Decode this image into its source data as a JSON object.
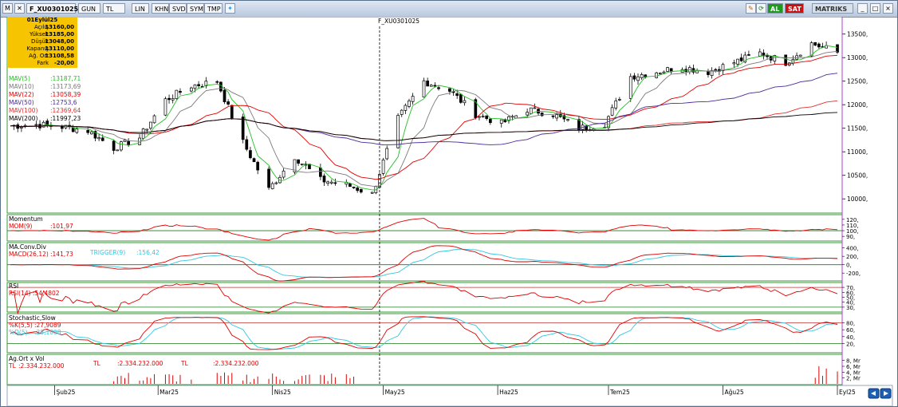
{
  "window": {
    "title": "F_XU0301025",
    "tabs": [
      "GUN",
      "TL",
      "LIN",
      "KHN",
      "SVD",
      "SYM",
      "TMP"
    ],
    "buttons": {
      "al": "AL",
      "sat": "SAT",
      "brand": "MATRIKS"
    },
    "symbol_label": "F_XU0301025"
  },
  "ohlc_box": {
    "date": "01Eylül25",
    "rows": [
      {
        "label": "Açılış",
        "value": "13160,00"
      },
      {
        "label": "Yüksek",
        "value": "13185,00"
      },
      {
        "label": "Düşük",
        "value": "13048,00"
      },
      {
        "label": "Kapanış",
        "value": "13110,00"
      },
      {
        "label": "Ağ. Ort",
        "value": "13108,58"
      },
      {
        "label": "Fark",
        "value": "-20,00"
      }
    ]
  },
  "ma_legend": [
    {
      "label": "MAV(5)",
      "value": ":13187,71",
      "color": "#22c022"
    },
    {
      "label": "MAV(10)",
      "value": ":13173,69",
      "color": "#7a7a7a"
    },
    {
      "label": "MAV(22)",
      "value": ":13058,39",
      "color": "#e00000"
    },
    {
      "label": "MAV(50)",
      "value": ":12753,6",
      "color": "#4a2a9a"
    },
    {
      "label": "MAV(100)",
      "value": ":12369,64",
      "color": "#e03030"
    },
    {
      "label": "MAV(200)",
      "value": ":11997,23",
      "color": "#000000"
    }
  ],
  "panels": {
    "momentum": {
      "title": "Momentum",
      "label": "MOM(9)",
      "value": ":101,97",
      "ticks": [
        "120,",
        "110,",
        "100,",
        "90,"
      ]
    },
    "macd": {
      "title": "MA.Conv.Div",
      "label": "MACD(26,12)",
      "value": ":141,73",
      "trigger_label": "TRIGGER(9)",
      "trigger_value": ":156,42",
      "ticks": [
        "400,",
        "200,",
        "0,",
        "-200,"
      ]
    },
    "rsi": {
      "title": "RSI",
      "label": "RSI(14)",
      "value": ":54,4802",
      "ticks": [
        "70,",
        "60,",
        "50,",
        "40,",
        "30,"
      ]
    },
    "stoch": {
      "title": "Stochastic,Slow",
      "k_label": "%K(5,5)",
      "k_value": ":27,9089",
      "d_label": "%D(5)",
      "d_value": ":38,1808",
      "ticks": [
        "80,",
        "60,",
        "40,",
        "20,"
      ]
    },
    "volume": {
      "title": "Ag.Ort x Vol",
      "label": "TL",
      "value": ":2.334.232.000",
      "ann1_tl": "TL",
      "ann1_val": ":2.334.232.000",
      "ann2_tl": "TL",
      "ann2_val": ":2.334.232.000",
      "ticks": [
        "8, Mr",
        "6, Mr",
        "4, Mr",
        "2, Mr"
      ]
    }
  },
  "price_axis_ticks": [
    "13500,",
    "13000,",
    "12500,",
    "12000,",
    "11500,",
    "11000,",
    "10500,",
    "10000,"
  ],
  "x_axis_labels": [
    "Şub25",
    "Mar25",
    "Nis25",
    "May25",
    "Haz25",
    "Tem25",
    "Ağu25",
    "Eyl25"
  ],
  "colors": {
    "up": "#ffffff",
    "down": "#000000",
    "ohlc_bg": "#f6c400",
    "al": "#1f9a1f",
    "sat": "#d01010"
  },
  "chart_data": {
    "type": "candlestick",
    "x_start": "2025-01-20",
    "x_end": "2025-09-01",
    "y_range": [
      9800,
      13800
    ],
    "series_close": [
      [
        "2025-01-20",
        11550
      ],
      [
        "2025-01-27",
        11580
      ],
      [
        "2025-02-03",
        11530
      ],
      [
        "2025-02-10",
        11450
      ],
      [
        "2025-02-17",
        11080
      ],
      [
        "2025-02-24",
        11300
      ],
      [
        "2025-03-03",
        12100
      ],
      [
        "2025-03-10",
        12400
      ],
      [
        "2025-03-17",
        12500
      ],
      [
        "2025-03-24",
        11200
      ],
      [
        "2025-03-31",
        10200
      ],
      [
        "2025-04-07",
        10900
      ],
      [
        "2025-04-14",
        10400
      ],
      [
        "2025-04-21",
        10300
      ],
      [
        "2025-04-28",
        10100
      ],
      [
        "2025-05-05",
        11700
      ],
      [
        "2025-05-12",
        12500
      ],
      [
        "2025-05-19",
        12300
      ],
      [
        "2025-05-26",
        11800
      ],
      [
        "2025-06-02",
        11600
      ],
      [
        "2025-06-09",
        11900
      ],
      [
        "2025-06-16",
        11800
      ],
      [
        "2025-06-23",
        11500
      ],
      [
        "2025-06-30",
        11600
      ],
      [
        "2025-07-07",
        12600
      ],
      [
        "2025-07-14",
        12700
      ],
      [
        "2025-07-21",
        12800
      ],
      [
        "2025-07-28",
        12700
      ],
      [
        "2025-08-04",
        12900
      ],
      [
        "2025-08-11",
        13100
      ],
      [
        "2025-08-18",
        12900
      ],
      [
        "2025-08-25",
        13300
      ],
      [
        "2025-09-01",
        13110
      ]
    ]
  }
}
